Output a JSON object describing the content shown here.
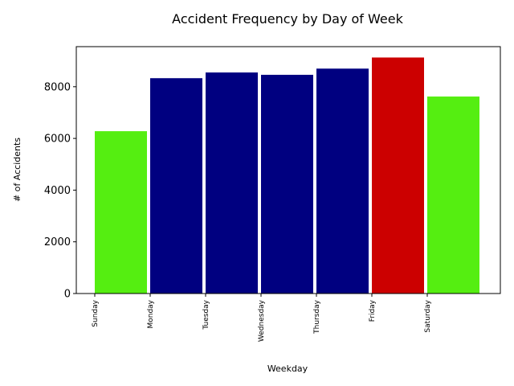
{
  "chart_data": {
    "type": "bar",
    "title": "Accident Frequency by Day of Week",
    "xlabel": "Weekday",
    "ylabel": "# of Accidents",
    "categories": [
      "Sunday",
      "Monday",
      "Tuesday",
      "Wednesday",
      "Thursday",
      "Friday",
      "Saturday"
    ],
    "values": [
      6280,
      8330,
      8550,
      8460,
      8700,
      9130,
      7620
    ],
    "colors": [
      "#55ee11",
      "#000080",
      "#000080",
      "#000080",
      "#000080",
      "#cc0000",
      "#55ee11"
    ],
    "ylim": [
      0,
      9550
    ],
    "yticks": [
      0,
      2000,
      4000,
      6000,
      8000
    ],
    "ytick_labels": [
      "0",
      "2000",
      "4000",
      "6000",
      "8000"
    ],
    "grid": false,
    "legend": "none"
  }
}
